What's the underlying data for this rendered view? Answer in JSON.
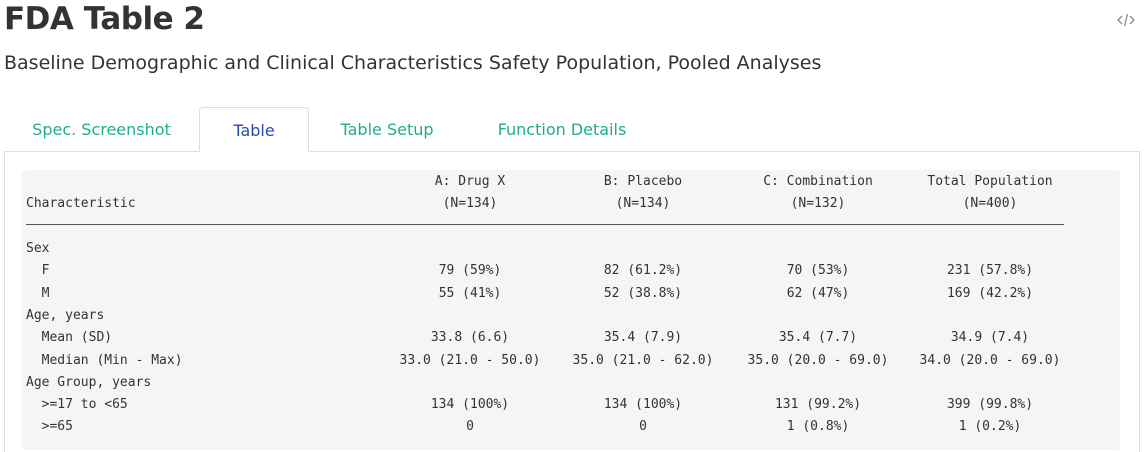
{
  "header": {
    "title": "FDA Table 2",
    "subtitle": "Baseline Demographic and Clinical Characteristics Safety Population, Pooled Analyses",
    "code_icon": "code-icon"
  },
  "tabs": [
    {
      "label": "Spec. Screenshot",
      "active": false
    },
    {
      "label": "Table",
      "active": true
    },
    {
      "label": "Table Setup",
      "active": false
    },
    {
      "label": "Function Details",
      "active": false
    }
  ],
  "table": {
    "stub_header": "Characteristic",
    "columns": [
      {
        "name": "A: Drug X",
        "n": "(N=134)"
      },
      {
        "name": "B: Placebo",
        "n": "(N=134)"
      },
      {
        "name": "C: Combination",
        "n": "(N=132)"
      },
      {
        "name": "Total Population",
        "n": "(N=400)"
      }
    ],
    "rows": [
      {
        "label": "Sex",
        "values": [
          "",
          "",
          "",
          ""
        ]
      },
      {
        "label": "  F",
        "values": [
          "79 (59%)",
          "82 (61.2%)",
          "70 (53%)",
          "231 (57.8%)"
        ]
      },
      {
        "label": "  M",
        "values": [
          "55 (41%)",
          "52 (38.8%)",
          "62 (47%)",
          "169 (42.2%)"
        ]
      },
      {
        "label": "Age, years",
        "values": [
          "",
          "",
          "",
          ""
        ]
      },
      {
        "label": "  Mean (SD)",
        "values": [
          "33.8 (6.6)",
          "35.4 (7.9)",
          "35.4 (7.7)",
          "34.9 (7.4)"
        ]
      },
      {
        "label": "  Median (Min - Max)",
        "values": [
          "33.0 (21.0 - 50.0)",
          "35.0 (21.0 - 62.0)",
          "35.0 (20.0 - 69.0)",
          "34.0 (20.0 - 69.0)"
        ]
      },
      {
        "label": "Age Group, years",
        "values": [
          "",
          "",
          "",
          ""
        ]
      },
      {
        "label": "  >=17 to <65",
        "values": [
          "134 (100%)",
          "134 (100%)",
          "131 (99.2%)",
          "399 (99.8%)"
        ]
      },
      {
        "label": "  >=65",
        "values": [
          "0",
          "0",
          "1 (0.8%)",
          "1 (0.2%)"
        ]
      }
    ]
  },
  "colors": {
    "tab_text": "#1fad8e",
    "active_tab_text": "#2a4aa8",
    "table_bg": "#f5f5f5"
  }
}
